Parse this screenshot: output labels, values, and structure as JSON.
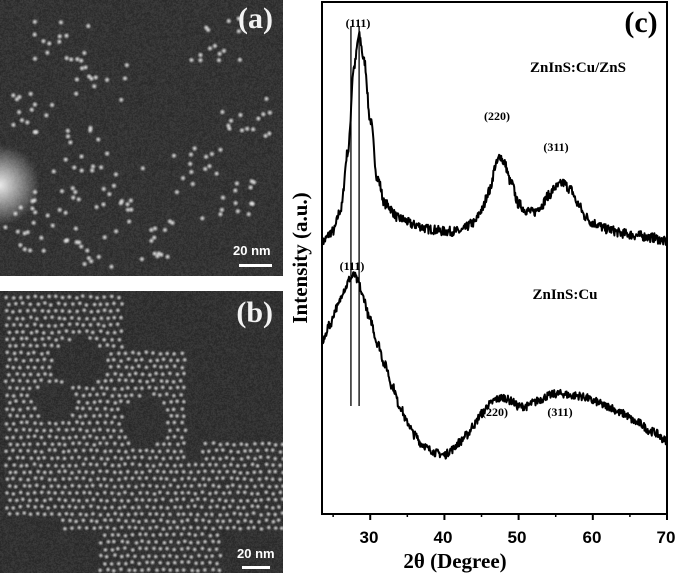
{
  "panels": {
    "a": {
      "label": "(a)",
      "scale_bar": "20 nm",
      "description": "TEM image of dispersed ZnInS:Cu nanocrystals"
    },
    "b": {
      "label": "(b)",
      "scale_bar": "20 nm",
      "description": "TEM image of densely packed ZnInS:Cu/ZnS nanocrystals"
    },
    "c": {
      "label": "(c)"
    }
  },
  "chart_data": {
    "type": "line",
    "title": "",
    "panel_label": "(c)",
    "xlabel": "2θ (Degree)",
    "ylabel": "Intensity (a.u.)",
    "xlim": [
      23.5,
      70
    ],
    "xticks": [
      30,
      40,
      50,
      60,
      70
    ],
    "minor_xticks": [
      25,
      35,
      45,
      55,
      65
    ],
    "yticks": [],
    "grid": false,
    "legend": "none (inline text labels)",
    "reference_lines_x": [
      27.4,
      28.5
    ],
    "series": [
      {
        "name": "ZnInS:Cu/ZnS",
        "offset": "upper",
        "peaks": [
          {
            "hkl": "(111)",
            "two_theta": 28.5,
            "relative_intensity": 1.0
          },
          {
            "hkl": "(220)",
            "two_theta": 47.5,
            "relative_intensity": 0.43
          },
          {
            "hkl": "(311)",
            "two_theta": 56.0,
            "relative_intensity": 0.3
          }
        ],
        "x": [
          23.5,
          25,
          26,
          27,
          27.8,
          28.5,
          29.2,
          30,
          31,
          32,
          34,
          36,
          38,
          40,
          42,
          44,
          45,
          46,
          47,
          47.5,
          48,
          49,
          50,
          51,
          52,
          53,
          54,
          55,
          56,
          57,
          58,
          59,
          60,
          62,
          64,
          66,
          68,
          70
        ],
        "values": [
          0.02,
          0.07,
          0.17,
          0.45,
          0.85,
          1.0,
          0.88,
          0.6,
          0.32,
          0.2,
          0.13,
          0.1,
          0.08,
          0.07,
          0.07,
          0.11,
          0.17,
          0.26,
          0.39,
          0.43,
          0.4,
          0.3,
          0.2,
          0.17,
          0.16,
          0.19,
          0.24,
          0.28,
          0.3,
          0.27,
          0.2,
          0.14,
          0.11,
          0.08,
          0.06,
          0.05,
          0.04,
          0.02
        ]
      },
      {
        "name": "ZnInS:Cu",
        "offset": "lower",
        "peaks": [
          {
            "hkl": "(111)",
            "two_theta": 27.8,
            "relative_intensity": 1.0
          },
          {
            "hkl": "(220)",
            "two_theta": 47.5,
            "relative_intensity": 0.32
          },
          {
            "hkl": "(311)",
            "two_theta": 56.0,
            "relative_intensity": 0.34
          }
        ],
        "x": [
          23.5,
          24.5,
          25.5,
          26.5,
          27.3,
          27.8,
          28.4,
          29,
          30,
          31,
          32,
          33,
          34,
          35,
          36,
          37,
          38,
          39,
          40,
          41,
          42,
          43,
          44,
          45,
          46,
          47,
          48,
          49,
          50,
          51,
          52,
          53,
          54,
          55,
          56,
          57,
          58,
          59,
          60,
          62,
          64,
          66,
          68,
          70
        ],
        "values": [
          0.62,
          0.72,
          0.82,
          0.92,
          0.98,
          1.0,
          0.96,
          0.88,
          0.75,
          0.62,
          0.5,
          0.38,
          0.27,
          0.18,
          0.11,
          0.06,
          0.03,
          0.01,
          0.0,
          0.03,
          0.07,
          0.11,
          0.17,
          0.23,
          0.28,
          0.31,
          0.32,
          0.3,
          0.27,
          0.27,
          0.29,
          0.31,
          0.33,
          0.34,
          0.34,
          0.33,
          0.33,
          0.32,
          0.3,
          0.27,
          0.23,
          0.18,
          0.13,
          0.08
        ]
      }
    ],
    "annotations": [
      {
        "text": "ZnInS:Cu/ZnS",
        "series": "ZnInS:Cu/ZnS"
      },
      {
        "text": "ZnInS:Cu",
        "series": "ZnInS:Cu"
      },
      {
        "text": "(111)",
        "series": "ZnInS:Cu/ZnS"
      },
      {
        "text": "(220)",
        "series": "ZnInS:Cu/ZnS"
      },
      {
        "text": "(311)",
        "series": "ZnInS:Cu/ZnS"
      },
      {
        "text": "(111)",
        "series": "ZnInS:Cu"
      },
      {
        "text": "(220)",
        "series": "ZnInS:Cu"
      },
      {
        "text": "(311)",
        "series": "ZnInS:Cu"
      }
    ]
  },
  "chart_text": {
    "xlabel": "2θ (Degree)",
    "ylabel": "Intensity (a.u.)",
    "series_label_upper": "ZnInS:Cu/ZnS",
    "series_label_lower": "ZnInS:Cu",
    "hkl_111": "(111)",
    "hkl_220": "(220)",
    "hkl_311": "(311)",
    "tick_30": "30",
    "tick_40": "40",
    "tick_50": "50",
    "tick_60": "60",
    "tick_70": "70"
  }
}
